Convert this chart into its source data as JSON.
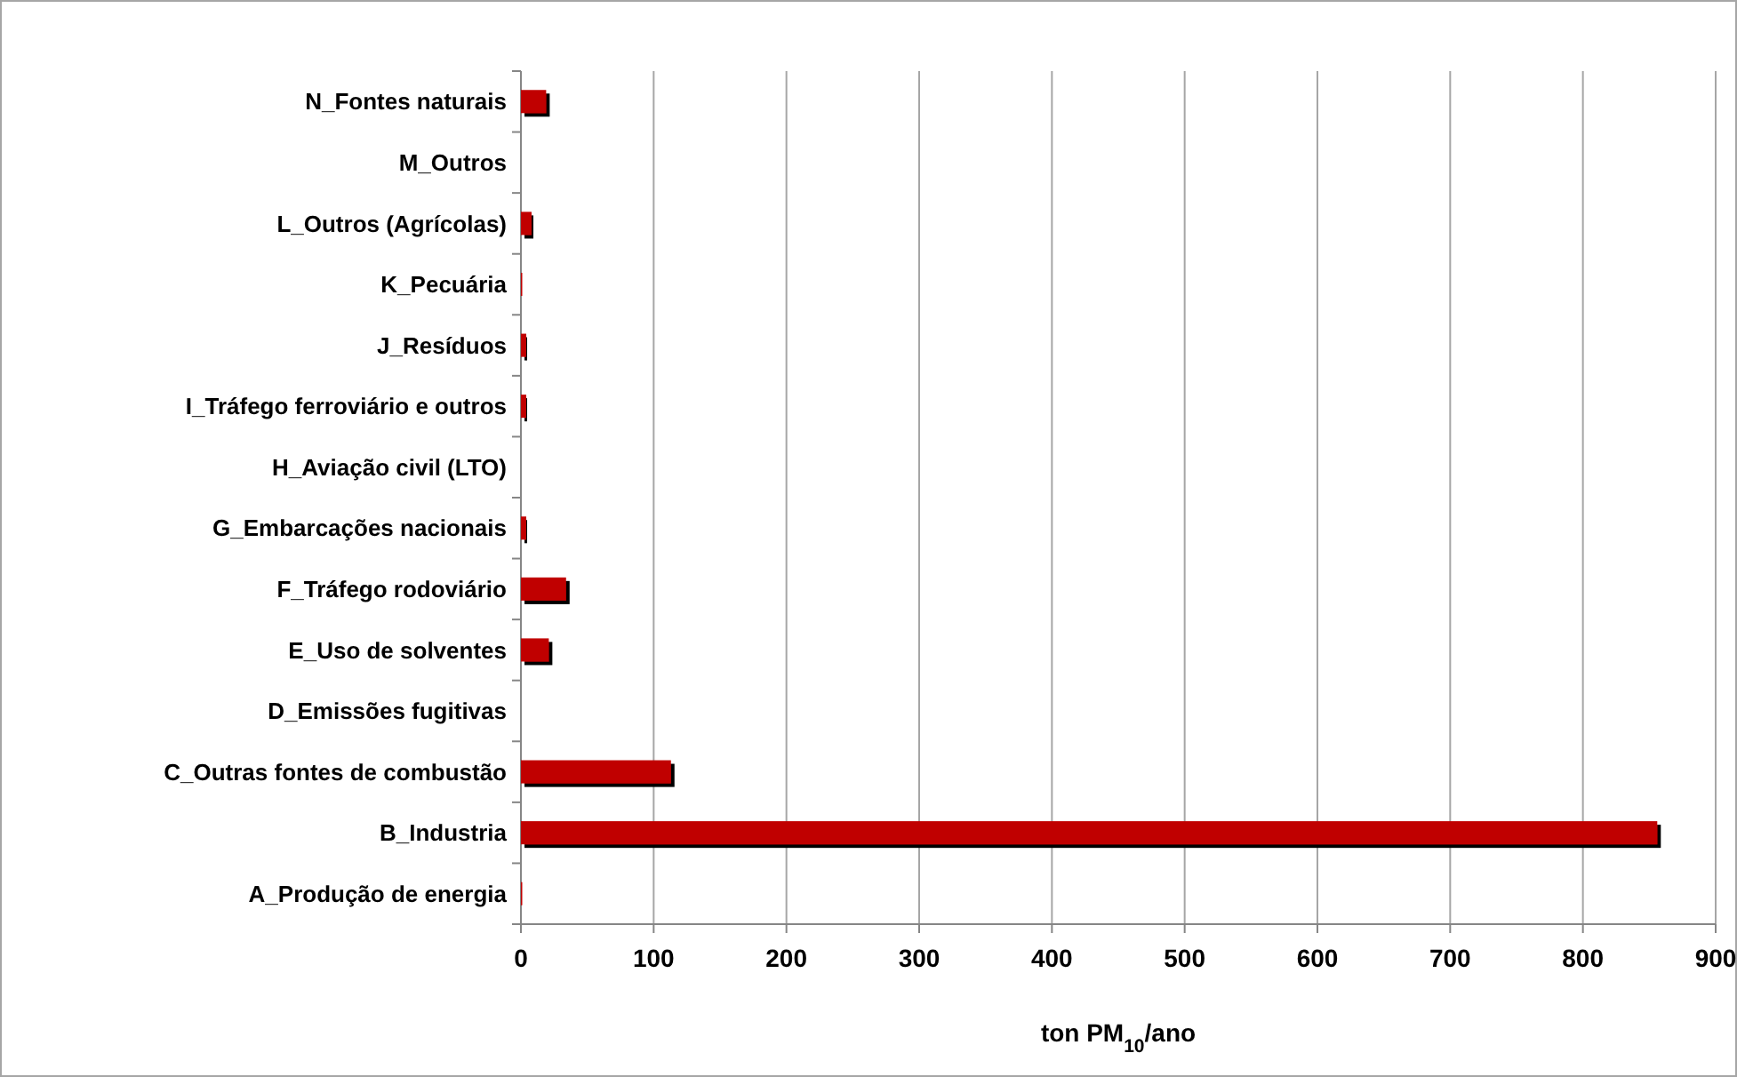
{
  "chart_data": {
    "type": "bar",
    "orientation": "horizontal",
    "xlabel": "ton PM$_{10}$/ano",
    "categories": [
      "N_Fontes naturais",
      "M_Outros",
      "L_Outros (Agrícolas)",
      "K_Pecuária",
      "J_Resíduos",
      "I_Tráfego ferroviário e outros",
      "H_Aviação civil (LTO)",
      "G_Embarcações nacionais",
      "F_Tráfego rodoviário",
      "E_Uso de solventes",
      "D_Emissões fugitivas",
      "C_Outras fontes de combustão",
      "B_Industria",
      "A_Produção de energia"
    ],
    "values": [
      19,
      0,
      8,
      1,
      4,
      4,
      0,
      4,
      34,
      21,
      0,
      113,
      856,
      1
    ],
    "color": "#c00000",
    "xlim": [
      0,
      900
    ],
    "xticks": [
      0,
      100,
      200,
      300,
      400,
      500,
      600,
      700,
      800,
      900
    ],
    "grid": "x"
  }
}
